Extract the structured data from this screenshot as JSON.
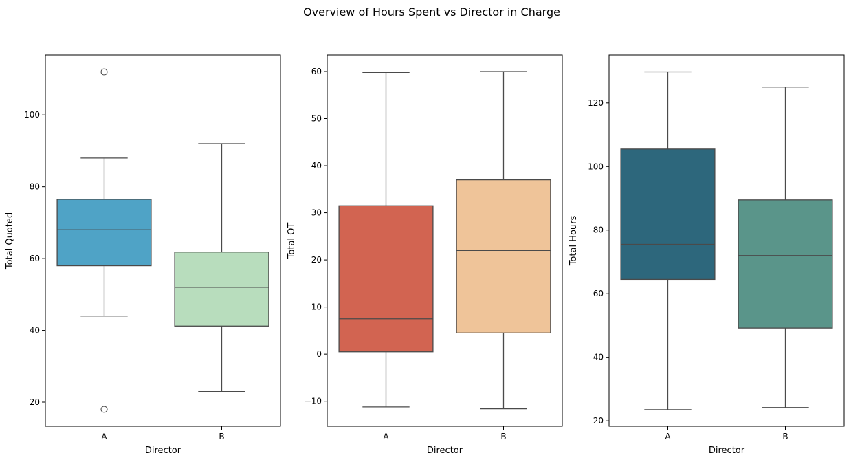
{
  "chart_data": {
    "type": "box",
    "title": "Overview of Hours Spent vs Director in Charge",
    "subplots": [
      {
        "xlabel": "Director",
        "ylabel": "Total Quoted",
        "categories": [
          "A",
          "B"
        ],
        "ylim": [
          13.3,
          116.7
        ],
        "yticks": [
          20,
          40,
          60,
          80,
          100
        ],
        "boxes": [
          {
            "category": "A",
            "whisker_low": 44,
            "q1": 58,
            "median": 68,
            "q3": 76.5,
            "whisker_high": 88,
            "outliers": [
              18,
              112
            ],
            "color": "#4fa3c6"
          },
          {
            "category": "B",
            "whisker_low": 23,
            "q1": 41.2,
            "median": 52,
            "q3": 61.8,
            "whisker_high": 92,
            "outliers": [],
            "color": "#b8ddbd"
          }
        ]
      },
      {
        "xlabel": "Director",
        "ylabel": "Total OT",
        "categories": [
          "A",
          "B"
        ],
        "ylim": [
          -15.3,
          63.5
        ],
        "yticks": [
          -10,
          0,
          10,
          20,
          30,
          40,
          50,
          60
        ],
        "boxes": [
          {
            "category": "A",
            "whisker_low": -11.2,
            "q1": 0.5,
            "median": 7.5,
            "q3": 31.5,
            "whisker_high": 59.8,
            "outliers": [],
            "color": "#d26451"
          },
          {
            "category": "B",
            "whisker_low": -11.6,
            "q1": 4.5,
            "median": 22,
            "q3": 37,
            "whisker_high": 60,
            "outliers": [],
            "color": "#efc499"
          }
        ]
      },
      {
        "xlabel": "Director",
        "ylabel": "Total Hours",
        "categories": [
          "A",
          "B"
        ],
        "ylim": [
          18.3,
          135.1
        ],
        "yticks": [
          20,
          40,
          60,
          80,
          100,
          120
        ],
        "boxes": [
          {
            "category": "A",
            "whisker_low": 23.5,
            "q1": 64.5,
            "median": 75.5,
            "q3": 105.5,
            "whisker_high": 129.8,
            "outliers": [],
            "color": "#2d677c"
          },
          {
            "category": "B",
            "whisker_low": 24.2,
            "q1": 49.2,
            "median": 72,
            "q3": 89.5,
            "whisker_high": 125,
            "outliers": [],
            "color": "#5a958a"
          }
        ]
      }
    ]
  }
}
